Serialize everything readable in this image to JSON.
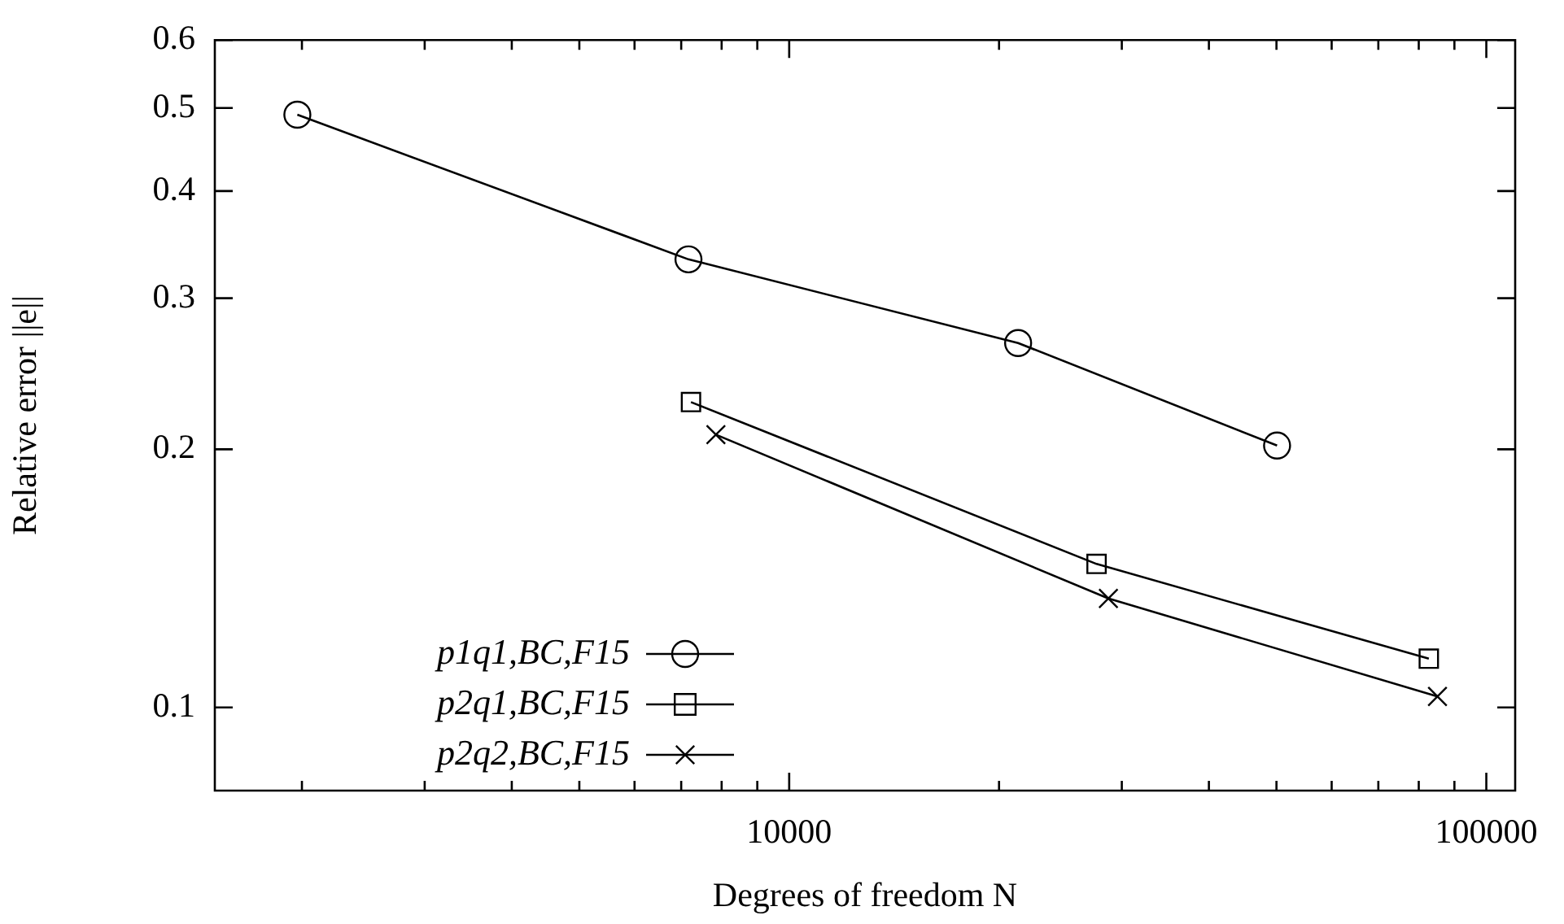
{
  "chart_data": {
    "type": "line",
    "xlabel": "Degrees of freedom N",
    "ylabel": "Relative error ||e||",
    "log": "xy",
    "grid": false,
    "legend": "bottom left",
    "xlim": [
      1500,
      110000
    ],
    "xticks": [
      {
        "value": 2000,
        "label": null
      },
      {
        "value": 3000,
        "label": null
      },
      {
        "value": 4000,
        "label": null
      },
      {
        "value": 5000,
        "label": null
      },
      {
        "value": 6000,
        "label": null
      },
      {
        "value": 7000,
        "label": null
      },
      {
        "value": 8000,
        "label": null
      },
      {
        "value": 9000,
        "label": null
      },
      10000,
      {
        "value": 20000,
        "label": null
      },
      {
        "value": 30000,
        "label": null
      },
      {
        "value": 40000,
        "label": null
      },
      {
        "value": 50000,
        "label": null
      },
      {
        "value": 60000,
        "label": null
      },
      {
        "value": 70000,
        "label": null
      },
      {
        "value": 80000,
        "label": null
      },
      {
        "value": 90000,
        "label": null
      },
      100000
    ],
    "ylim": [
      0.08,
      0.6
    ],
    "yticks": [
      0.1,
      0.2,
      0.3,
      0.4,
      0.5,
      0.6
    ],
    "series": [
      {
        "name": "p1q1,BC,F15",
        "color": "#000000",
        "marker": "circle",
        "x": [
          1970,
          7170,
          21300,
          50100
        ],
        "values": [
          0.491,
          0.333,
          0.266,
          0.202
        ]
      },
      {
        "name": "p2q1,BC,F15",
        "color": "#000000",
        "marker": "square",
        "x": [
          7230,
          27600,
          82700
        ],
        "values": [
          0.227,
          0.147,
          0.114
        ]
      },
      {
        "name": "p2q2,BC,F15",
        "color": "#000000",
        "marker": "cross",
        "x": [
          7850,
          28700,
          85100
        ],
        "values": [
          0.208,
          0.134,
          0.103
        ]
      }
    ]
  }
}
